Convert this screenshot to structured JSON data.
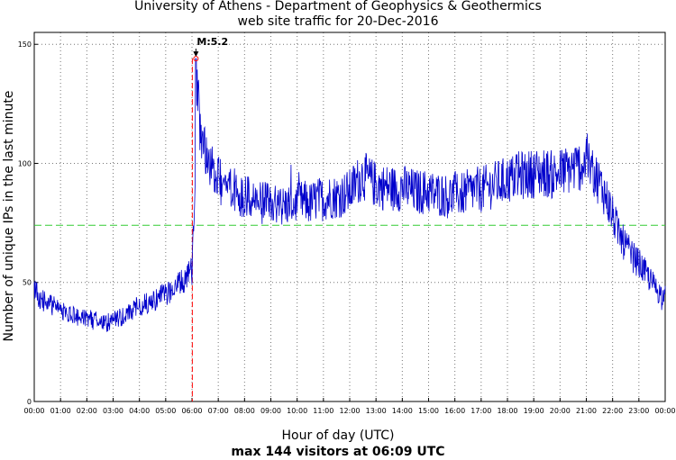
{
  "chart_data": {
    "type": "line",
    "title": "University of Athens - Department of Geophysics & Geothermics",
    "subtitle": "web site traffic for 20-Dec-2016",
    "xlabel": "Hour of day (UTC)",
    "ylabel": "Number of unique IPs in the last minute",
    "footer": "max 144 visitors at 06:09 UTC",
    "xlim": [
      0,
      24
    ],
    "ylim": [
      0,
      155
    ],
    "x_ticks": [
      "00:00",
      "01:00",
      "02:00",
      "03:00",
      "04:00",
      "05:00",
      "06:00",
      "07:00",
      "08:00",
      "09:00",
      "10:00",
      "11:00",
      "12:00",
      "13:00",
      "14:00",
      "15:00",
      "16:00",
      "17:00",
      "18:00",
      "19:00",
      "20:00",
      "21:00",
      "22:00",
      "23:00",
      "00:00"
    ],
    "y_ticks": [
      0,
      50,
      100,
      150
    ],
    "grid": true,
    "mean_line": {
      "y": 74,
      "color": "#33cc33"
    },
    "event": {
      "label": "M:5.2",
      "x": 6.15,
      "color": "#ff0000"
    },
    "peak": {
      "x": 6.15,
      "y": 144
    },
    "series": [
      {
        "color": "#0000cc",
        "points": [
          [
            0.0,
            47
          ],
          [
            0.25,
            43
          ],
          [
            0.5,
            41
          ],
          [
            0.75,
            40
          ],
          [
            1.0,
            38
          ],
          [
            1.25,
            37
          ],
          [
            1.5,
            36
          ],
          [
            1.75,
            35
          ],
          [
            2.0,
            35
          ],
          [
            2.25,
            34
          ],
          [
            2.5,
            34
          ],
          [
            2.75,
            33
          ],
          [
            3.0,
            34
          ],
          [
            3.25,
            35
          ],
          [
            3.5,
            36
          ],
          [
            3.75,
            38
          ],
          [
            4.0,
            40
          ],
          [
            4.25,
            41
          ],
          [
            4.5,
            42
          ],
          [
            4.75,
            44
          ],
          [
            5.0,
            45
          ],
          [
            5.25,
            47
          ],
          [
            5.5,
            49
          ],
          [
            5.75,
            51
          ],
          [
            6.0,
            55
          ],
          [
            6.1,
            80
          ],
          [
            6.15,
            144
          ],
          [
            6.3,
            118
          ],
          [
            6.5,
            108
          ],
          [
            6.75,
            98
          ],
          [
            7.0,
            93
          ],
          [
            7.25,
            91
          ],
          [
            7.5,
            90
          ],
          [
            7.75,
            88
          ],
          [
            8.0,
            86
          ],
          [
            8.25,
            85
          ],
          [
            8.5,
            84
          ],
          [
            8.75,
            83
          ],
          [
            9.0,
            83
          ],
          [
            9.25,
            82
          ],
          [
            9.5,
            82
          ],
          [
            9.75,
            83
          ],
          [
            10.0,
            83
          ],
          [
            10.25,
            84
          ],
          [
            10.5,
            83
          ],
          [
            10.75,
            85
          ],
          [
            11.0,
            85
          ],
          [
            11.25,
            86
          ],
          [
            11.5,
            86
          ],
          [
            11.75,
            87
          ],
          [
            12.0,
            88
          ],
          [
            12.25,
            92
          ],
          [
            12.5,
            95
          ],
          [
            12.75,
            93
          ],
          [
            13.0,
            91
          ],
          [
            13.25,
            90
          ],
          [
            13.5,
            90
          ],
          [
            13.75,
            89
          ],
          [
            14.0,
            90
          ],
          [
            14.25,
            89
          ],
          [
            14.5,
            88
          ],
          [
            14.75,
            88
          ],
          [
            15.0,
            88
          ],
          [
            15.25,
            87
          ],
          [
            15.5,
            87
          ],
          [
            15.75,
            86
          ],
          [
            16.0,
            87
          ],
          [
            16.25,
            87
          ],
          [
            16.5,
            88
          ],
          [
            16.75,
            89
          ],
          [
            17.0,
            89
          ],
          [
            17.25,
            90
          ],
          [
            17.5,
            91
          ],
          [
            17.75,
            92
          ],
          [
            18.0,
            93
          ],
          [
            18.25,
            94
          ],
          [
            18.5,
            95
          ],
          [
            18.75,
            95
          ],
          [
            19.0,
            96
          ],
          [
            19.25,
            96
          ],
          [
            19.5,
            96
          ],
          [
            19.75,
            95
          ],
          [
            20.0,
            96
          ],
          [
            20.25,
            97
          ],
          [
            20.5,
            98
          ],
          [
            20.75,
            99
          ],
          [
            21.0,
            100
          ],
          [
            21.25,
            97
          ],
          [
            21.5,
            92
          ],
          [
            21.75,
            86
          ],
          [
            22.0,
            78
          ],
          [
            22.25,
            70
          ],
          [
            22.5,
            65
          ],
          [
            22.75,
            61
          ],
          [
            23.0,
            58
          ],
          [
            23.25,
            54
          ],
          [
            23.5,
            50
          ],
          [
            23.75,
            46
          ],
          [
            24.0,
            44
          ]
        ]
      }
    ]
  }
}
